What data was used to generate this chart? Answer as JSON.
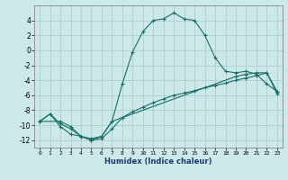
{
  "xlabel": "Humidex (Indice chaleur)",
  "bg_color": "#cce8e8",
  "grid_color": "#aad0d0",
  "line_color": "#1a6e6a",
  "xlim": [
    -0.5,
    23.5
  ],
  "ylim": [
    -13,
    6
  ],
  "xticks": [
    0,
    1,
    2,
    3,
    4,
    5,
    6,
    7,
    8,
    9,
    10,
    11,
    12,
    13,
    14,
    15,
    16,
    17,
    18,
    19,
    20,
    21,
    22,
    23
  ],
  "yticks": [
    -12,
    -10,
    -8,
    -6,
    -4,
    -2,
    0,
    2,
    4
  ],
  "line1_x": [
    0,
    1,
    2,
    3,
    4,
    5,
    6,
    7,
    8,
    9,
    10,
    11,
    12,
    13,
    14,
    15,
    16,
    17,
    18,
    19,
    20,
    21,
    22,
    23
  ],
  "line1_y": [
    -9.5,
    -8.5,
    -10.2,
    -11.2,
    -11.5,
    -12.0,
    -11.5,
    -9.5,
    -4.5,
    -0.2,
    2.5,
    4.0,
    4.2,
    5.0,
    4.2,
    4.0,
    2.0,
    -1.0,
    -2.8,
    -3.0,
    -2.8,
    -3.2,
    -4.5,
    -5.5
  ],
  "line2_x": [
    0,
    2,
    3,
    4,
    5,
    6,
    7,
    19,
    20,
    21,
    22,
    23
  ],
  "line2_y": [
    -9.5,
    -9.5,
    -10.2,
    -11.5,
    -11.8,
    -11.5,
    -9.5,
    -3.5,
    -3.2,
    -3.0,
    -3.0,
    -5.5
  ],
  "line3_x": [
    0,
    1,
    2,
    3,
    4,
    5,
    6,
    7,
    8,
    9,
    10,
    11,
    12,
    13,
    14,
    15,
    16,
    17,
    18,
    19,
    20,
    21,
    22,
    23
  ],
  "line3_y": [
    -9.5,
    -8.5,
    -9.8,
    -10.5,
    -11.5,
    -12.0,
    -11.8,
    -10.5,
    -9.0,
    -8.2,
    -7.6,
    -7.0,
    -6.5,
    -6.0,
    -5.7,
    -5.4,
    -5.0,
    -4.7,
    -4.4,
    -4.0,
    -3.7,
    -3.4,
    -3.0,
    -5.8
  ]
}
